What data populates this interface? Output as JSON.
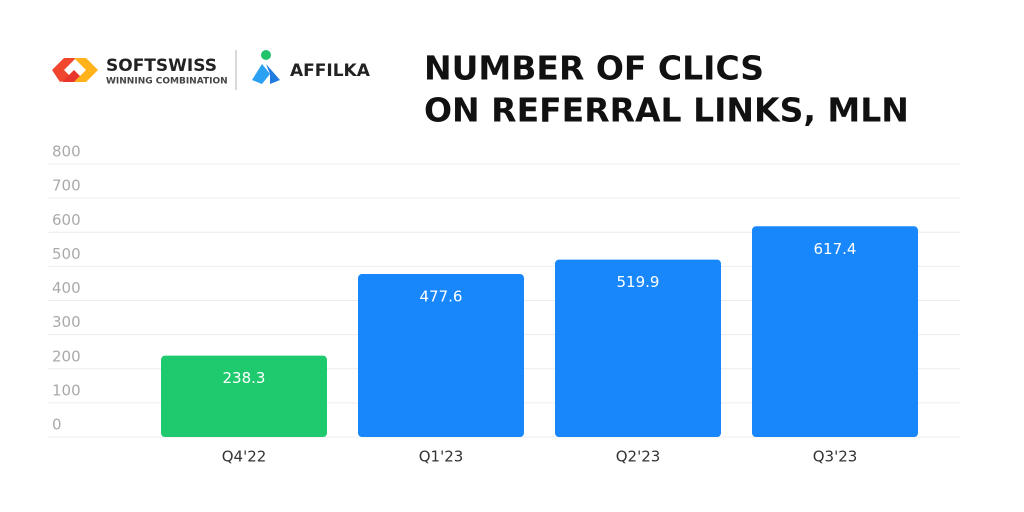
{
  "branding": {
    "softswiss": "SOFTSWISS",
    "tagline": "WINNING COMBINATION",
    "affilka": "AFFILKA"
  },
  "chart_data": {
    "type": "bar",
    "title": [
      "NUMBER OF CLICS",
      "ON REFERRAL LINKS, MLN"
    ],
    "categories": [
      "Q4'22",
      "Q1'23",
      "Q2'23",
      "Q3'23"
    ],
    "values": [
      238.3,
      477.6,
      519.9,
      617.4
    ],
    "colors": [
      "#1fca6e",
      "#1887fc",
      "#1887fc",
      "#1887fc"
    ],
    "ylim": [
      0,
      800
    ],
    "yticks": [
      0,
      100,
      200,
      300,
      400,
      500,
      600,
      700,
      800
    ],
    "grid": true
  }
}
